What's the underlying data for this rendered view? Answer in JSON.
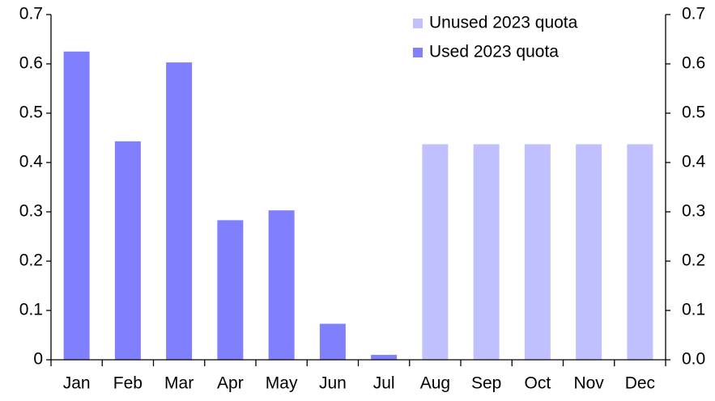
{
  "chart_data": {
    "type": "bar",
    "categories": [
      "Jan",
      "Feb",
      "Mar",
      "Apr",
      "May",
      "Jun",
      "Jul",
      "Aug",
      "Sep",
      "Oct",
      "Nov",
      "Dec"
    ],
    "series": [
      {
        "name": "Unused 2023 quota",
        "color": "#c0c0ff",
        "values": [
          null,
          null,
          null,
          null,
          null,
          null,
          null,
          0.437,
          0.437,
          0.437,
          0.437,
          0.437
        ]
      },
      {
        "name": "Used 2023 quota",
        "color": "#8080ff",
        "values": [
          0.625,
          0.443,
          0.603,
          0.283,
          0.303,
          0.073,
          0.01,
          null,
          null,
          null,
          null,
          null
        ]
      }
    ],
    "ylim": [
      0,
      0.7
    ],
    "yticks": [
      0,
      0.1,
      0.2,
      0.3,
      0.4,
      0.5,
      0.6,
      0.7
    ],
    "y2lim": [
      0,
      0.7
    ],
    "y2ticks": [
      {
        "value": 0,
        "label": "0.0"
      },
      0.1,
      0.2,
      0.3,
      0.4,
      0.5,
      0.6,
      0.7
    ],
    "legend": "upper right",
    "grid": false
  }
}
